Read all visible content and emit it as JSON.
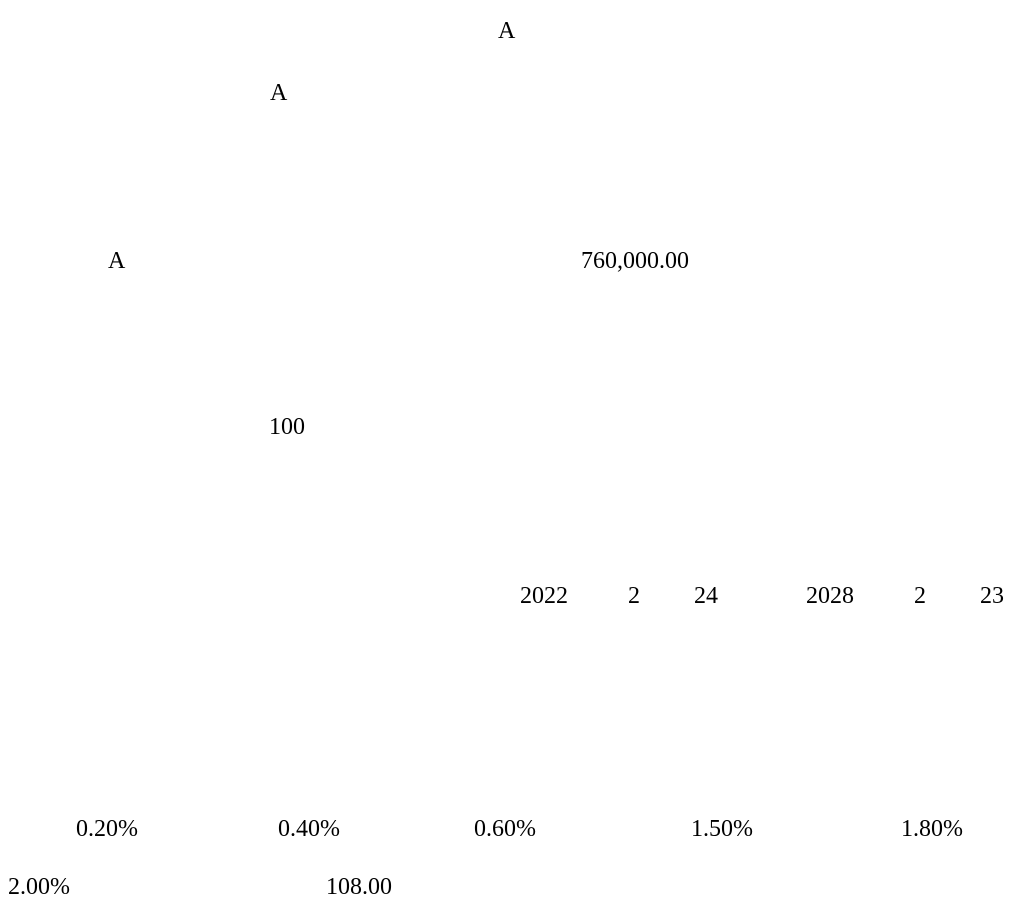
{
  "title": "A",
  "subtitle": "A",
  "row_label": "A",
  "amount": "760,000.00",
  "face_value": "100",
  "start_date": {
    "year": "2022",
    "month": "2",
    "day": "24"
  },
  "end_date": {
    "year": "2028",
    "month": "2",
    "day": "23"
  },
  "coupon_rates": [
    "0.20%",
    "0.40%",
    "0.60%",
    "1.50%",
    "1.80%",
    "2.00%"
  ],
  "price": "108.00"
}
